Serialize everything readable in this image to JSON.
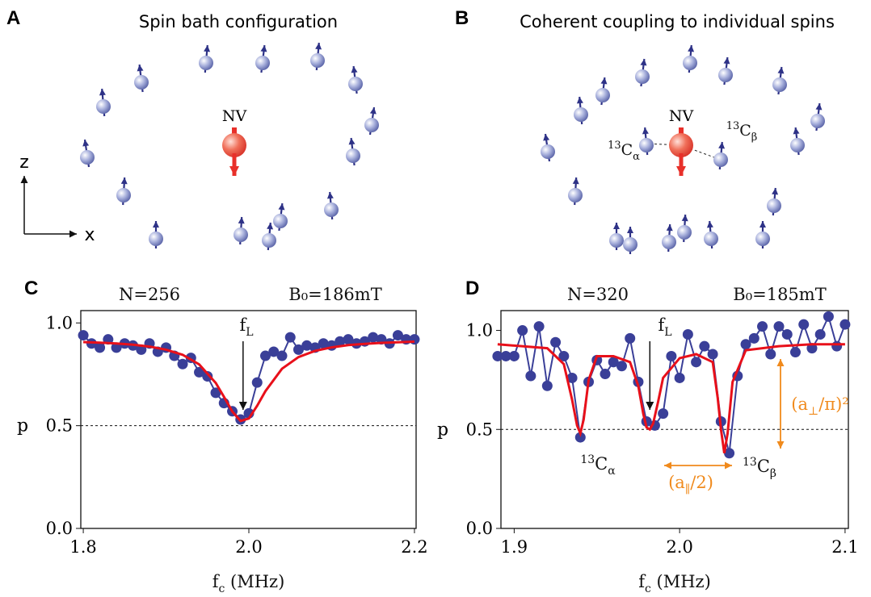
{
  "diagrams": [
    {
      "letter": "A",
      "title": "Spin bath configuration",
      "nv": "NV",
      "axis_z": "z",
      "axis_x": "x"
    },
    {
      "letter": "B",
      "title": "Coherent coupling to individual spins",
      "nv": "NV",
      "labels": [
        {
          "sup": "13",
          "text": "C",
          "sub": "α"
        },
        {
          "sup": "13",
          "text": "C",
          "sub": "β"
        }
      ]
    }
  ],
  "chart_data": [
    {
      "type": "line",
      "letter": "C",
      "annotations": [
        {
          "text": "N=256"
        },
        {
          "text": "B₀=186mT"
        },
        {
          "text": "f",
          "sub": "L"
        }
      ],
      "xlabel": {
        "text": "f",
        "sub": "c",
        "suffix": " (MHz)"
      },
      "ylabel": "p",
      "xlim": [
        1.797,
        2.202
      ],
      "ylim": [
        0,
        1.06
      ],
      "xticks": [
        1.8,
        {
          "value": 2.0,
          "label": "2.0"
        },
        2.2
      ],
      "yticks": [
        {
          "value": 0,
          "label": "0.0"
        },
        0.5,
        {
          "value": 1,
          "label": "1.0"
        }
      ],
      "hline": 0.5,
      "series": [
        {
          "color": "#3a3f98",
          "marker": true,
          "x": [
            1.8,
            1.81,
            1.82,
            1.83,
            1.84,
            1.85,
            1.86,
            1.87,
            1.88,
            1.89,
            1.9,
            1.91,
            1.92,
            1.93,
            1.94,
            1.95,
            1.96,
            1.97,
            1.98,
            1.99,
            2.0,
            2.01,
            2.02,
            2.03,
            2.04,
            2.05,
            2.06,
            2.07,
            2.08,
            2.09,
            2.1,
            2.11,
            2.12,
            2.13,
            2.14,
            2.15,
            2.16,
            2.17,
            2.18,
            2.19,
            2.2
          ],
          "values": [
            0.94,
            0.9,
            0.88,
            0.92,
            0.88,
            0.9,
            0.89,
            0.87,
            0.9,
            0.86,
            0.88,
            0.84,
            0.8,
            0.83,
            0.76,
            0.74,
            0.66,
            0.61,
            0.57,
            0.53,
            0.56,
            0.71,
            0.84,
            0.86,
            0.84,
            0.93,
            0.87,
            0.89,
            0.88,
            0.9,
            0.89,
            0.91,
            0.92,
            0.9,
            0.91,
            0.93,
            0.92,
            0.9,
            0.94,
            0.92,
            0.92
          ]
        },
        {
          "color": "#e8101a",
          "marker": false,
          "x": [
            1.8,
            1.82,
            1.84,
            1.86,
            1.88,
            1.9,
            1.92,
            1.94,
            1.96,
            1.97,
            1.98,
            1.99,
            2.0,
            2.01,
            2.02,
            2.04,
            2.06,
            2.08,
            2.1,
            2.12,
            2.14,
            2.16,
            2.18,
            2.2
          ],
          "values": [
            0.907,
            0.904,
            0.9,
            0.894,
            0.885,
            0.87,
            0.845,
            0.798,
            0.708,
            0.64,
            0.569,
            0.523,
            0.535,
            0.597,
            0.668,
            0.777,
            0.834,
            0.864,
            0.881,
            0.892,
            0.898,
            0.903,
            0.906,
            0.909
          ]
        }
      ]
    },
    {
      "type": "line",
      "letter": "D",
      "annotations": [
        {
          "text": "N=320"
        },
        {
          "text": "B₀=185mT"
        },
        {
          "text": "f",
          "sub": "L"
        },
        {
          "sup": "13",
          "text": "C",
          "sub": "α"
        },
        {
          "sup": "13",
          "text": "C",
          "sub": "β"
        },
        {
          "text": "(a",
          "sub": "∥",
          "suffix": "/2)"
        },
        {
          "text": "(a",
          "sub": "⊥",
          "suffix": "/π)²"
        }
      ],
      "xlabel": {
        "text": "f",
        "sub": "c",
        "suffix": " (MHz)"
      },
      "ylabel": "p",
      "xlim": [
        1.892,
        2.102
      ],
      "ylim": [
        0,
        1.1
      ],
      "xticks": [
        1.9,
        {
          "value": 2.0,
          "label": "2.0"
        },
        2.1
      ],
      "yticks": [
        {
          "value": 0,
          "label": "0.0"
        },
        0.5,
        {
          "value": 1,
          "label": "1.0"
        }
      ],
      "hline": 0.5,
      "series": [
        {
          "color": "#3a3f98",
          "marker": true,
          "x": [
            1.89,
            1.895,
            1.9,
            1.905,
            1.91,
            1.915,
            1.92,
            1.925,
            1.93,
            1.935,
            1.94,
            1.945,
            1.95,
            1.955,
            1.96,
            1.965,
            1.97,
            1.975,
            1.98,
            1.985,
            1.99,
            1.995,
            2.0,
            2.005,
            2.01,
            2.015,
            2.02,
            2.025,
            2.03,
            2.035,
            2.04,
            2.045,
            2.05,
            2.055,
            2.06,
            2.065,
            2.07,
            2.075,
            2.08,
            2.085,
            2.09,
            2.095,
            2.1
          ],
          "values": [
            0.87,
            0.87,
            0.87,
            1.0,
            0.77,
            1.02,
            0.72,
            0.94,
            0.87,
            0.76,
            0.46,
            0.74,
            0.85,
            0.78,
            0.84,
            0.82,
            0.96,
            0.74,
            0.54,
            0.52,
            0.58,
            0.87,
            0.76,
            0.98,
            0.84,
            0.92,
            0.88,
            0.54,
            0.38,
            0.77,
            0.93,
            0.96,
            1.02,
            0.88,
            1.02,
            0.98,
            0.89,
            1.03,
            0.91,
            0.98,
            1.07,
            0.92,
            1.03
          ]
        },
        {
          "color": "#e8101a",
          "marker": false,
          "x": [
            1.89,
            1.92,
            1.93,
            1.935,
            1.938,
            1.94,
            1.942,
            1.945,
            1.95,
            1.96,
            1.97,
            1.975,
            1.978,
            1.98,
            1.982,
            1.984,
            1.987,
            1.99,
            2.0,
            2.01,
            2.02,
            2.023,
            2.025,
            2.027,
            2.029,
            2.032,
            2.04,
            2.06,
            2.08,
            2.1
          ],
          "values": [
            0.93,
            0.91,
            0.83,
            0.65,
            0.52,
            0.48,
            0.55,
            0.75,
            0.87,
            0.87,
            0.84,
            0.72,
            0.58,
            0.51,
            0.5,
            0.53,
            0.64,
            0.76,
            0.86,
            0.88,
            0.84,
            0.66,
            0.5,
            0.38,
            0.48,
            0.74,
            0.9,
            0.92,
            0.93,
            0.93
          ]
        }
      ]
    }
  ]
}
